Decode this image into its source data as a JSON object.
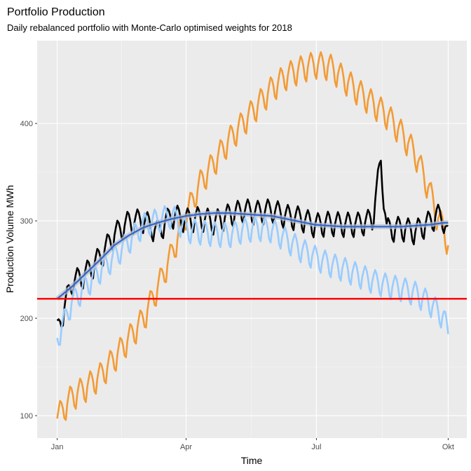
{
  "chart_data": {
    "type": "line",
    "title": "Portfolio Production",
    "subtitle": "Daily rebalanced portfolio with Monte-Carlo optimised weights for 2018",
    "xlabel": "Time",
    "ylabel": "Production Volume MWh",
    "x_ticks": [
      {
        "label": "Jan",
        "day": 0
      },
      {
        "label": "Apr",
        "day": 90
      },
      {
        "label": "Jul",
        "day": 181
      },
      {
        "label": "Okt",
        "day": 273
      }
    ],
    "xlim": [
      -14,
      286
    ],
    "ylim": [
      77,
      485
    ],
    "y_ticks": [
      100,
      200,
      300,
      400
    ],
    "grid": true,
    "legend": "none",
    "hline": {
      "value": 220,
      "color": "#ff0000"
    },
    "series": [
      {
        "color": "#f39b35",
        "x": [
          0,
          10,
          20,
          30,
          40,
          50,
          60,
          70,
          80,
          90,
          100,
          110,
          120,
          130,
          140,
          150,
          160,
          170,
          180,
          190,
          200,
          210,
          220,
          230,
          240,
          250,
          260,
          265,
          270,
          273
        ],
        "y": [
          97,
          118,
          128,
          140,
          158,
          178,
          198,
          230,
          265,
          305,
          338,
          360,
          382,
          400,
          418,
          435,
          448,
          455,
          460,
          458,
          445,
          432,
          420,
          408,
          390,
          368,
          330,
          305,
          290,
          275
        ]
      },
      {
        "color": "#000000",
        "x": [
          0,
          10,
          20,
          30,
          40,
          50,
          60,
          70,
          80,
          90,
          100,
          110,
          120,
          130,
          140,
          150,
          160,
          170,
          180,
          190,
          200,
          210,
          220,
          226,
          230,
          240,
          250,
          260,
          265,
          270,
          273
        ],
        "y": [
          185,
          235,
          245,
          262,
          285,
          298,
          300,
          288,
          305,
          300,
          302,
          298,
          305,
          310,
          308,
          310,
          304,
          302,
          295,
          297,
          296,
          296,
          300,
          360,
          290,
          292,
          288,
          298,
          305,
          300,
          282
        ]
      },
      {
        "color": "#99ccff",
        "x": [
          0,
          10,
          20,
          30,
          40,
          50,
          60,
          70,
          80,
          90,
          100,
          110,
          120,
          130,
          140,
          150,
          160,
          170,
          180,
          190,
          200,
          210,
          220,
          230,
          240,
          250,
          260,
          270,
          273
        ],
        "y": [
          178,
          215,
          232,
          248,
          262,
          278,
          295,
          300,
          305,
          290,
          288,
          286,
          285,
          290,
          292,
          290,
          280,
          270,
          262,
          255,
          250,
          244,
          238,
          233,
          230,
          225,
          215,
          200,
          182
        ]
      },
      {
        "color": "#3366cc",
        "x": [
          0,
          10,
          20,
          30,
          40,
          50,
          60,
          70,
          80,
          90,
          100,
          110,
          120,
          130,
          140,
          150,
          160,
          170,
          180,
          190,
          200,
          210,
          220,
          230,
          240,
          250,
          260,
          270,
          273
        ],
        "y": [
          220,
          232,
          246,
          260,
          275,
          285,
          293,
          298,
          302,
          305,
          307,
          308,
          308,
          307,
          306,
          305,
          302,
          299,
          296,
          295,
          294,
          294,
          294,
          294,
          294,
          295,
          296,
          298,
          298
        ]
      }
    ]
  }
}
